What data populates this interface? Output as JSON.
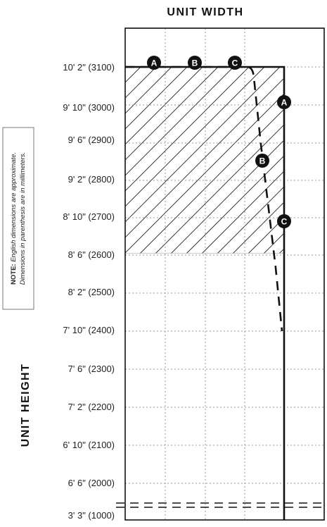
{
  "x_axis_title": "UNIT WIDTH",
  "y_axis_title": "UNIT HEIGHT",
  "note": {
    "prefix": "NOTE:",
    "line1": "English dimensions are approximate.",
    "line2": "Dimensions in parenthesis are in millimeters."
  },
  "y_tick_labels": [
    "10' 2\" (3100)",
    "9' 10\" (3000)",
    "9' 6\" (2900)",
    "9' 2\" (2800)",
    "8' 10\" (2700)",
    "8' 6\" (2600)",
    "8' 2\" (2500)",
    "7' 10\" (2400)",
    "7' 6\" (2300)",
    "7' 2\" (2200)",
    "6' 10\" (2100)",
    "6' 6\" (2000)",
    "3' 3\" (1000)"
  ],
  "markers": {
    "top": [
      "A",
      "B",
      "C"
    ],
    "right": [
      "A",
      "B",
      "C"
    ]
  },
  "colors": {
    "line": "#111111",
    "grid": "#999999",
    "hatch": "#222222",
    "marker_fill": "#111111",
    "marker_text": "#ffffff"
  }
}
